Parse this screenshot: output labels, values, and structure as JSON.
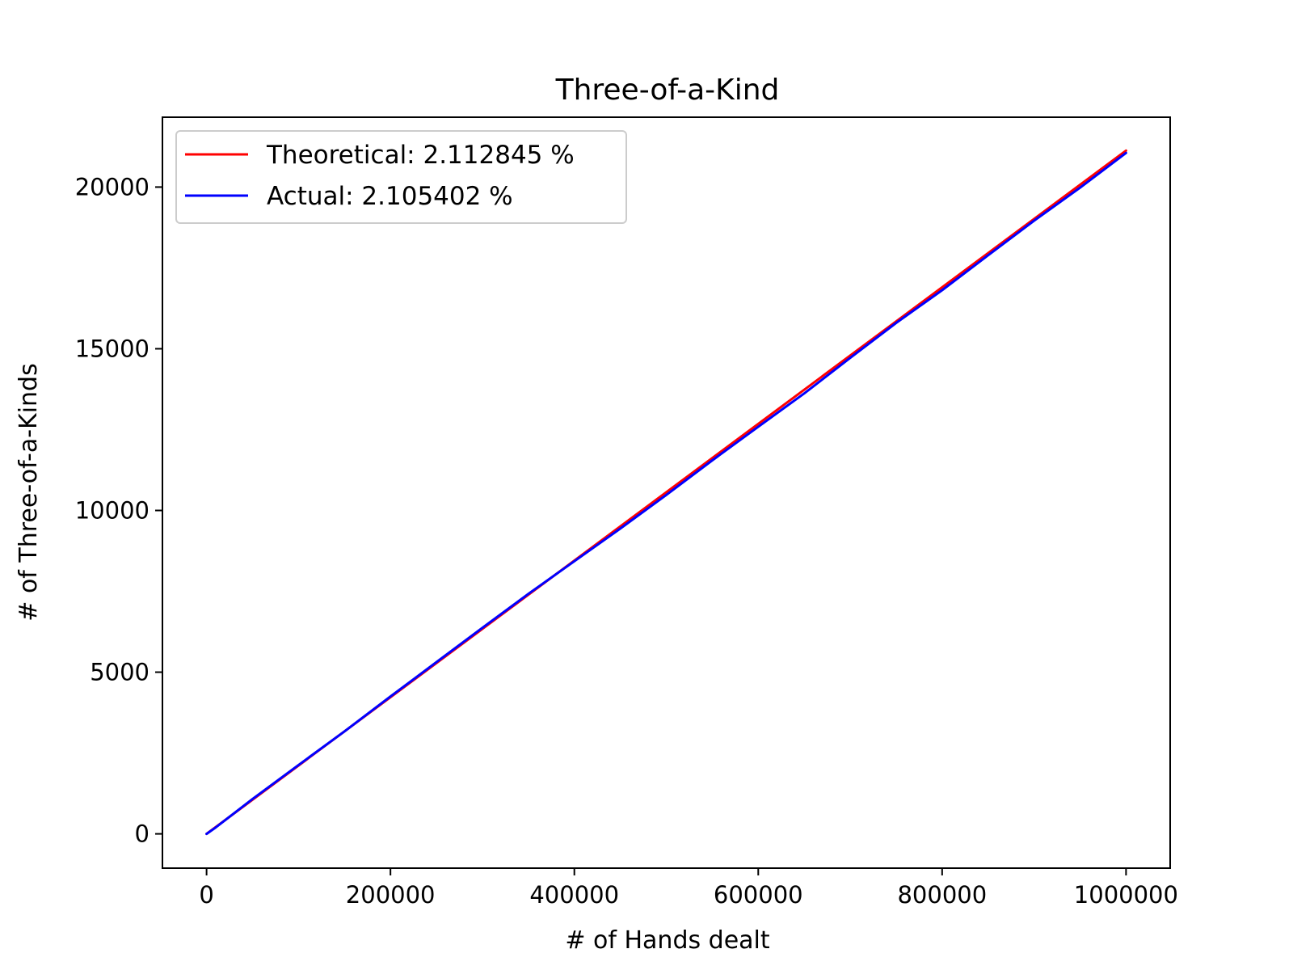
{
  "chart_data": {
    "type": "line",
    "title": "Three-of-a-Kind",
    "xlabel": "# of Hands dealt",
    "ylabel": "# of Three-of-a-Kinds",
    "xlim": [
      -48000,
      1048000
    ],
    "ylim": [
      -1060,
      22160
    ],
    "xticks": [
      0,
      200000,
      400000,
      600000,
      800000,
      1000000
    ],
    "xtick_labels": [
      "0",
      "200000",
      "400000",
      "600000",
      "800000",
      "1000000"
    ],
    "yticks": [
      0,
      5000,
      10000,
      15000,
      20000
    ],
    "ytick_labels": [
      "0",
      "5000",
      "10000",
      "15000",
      "20000"
    ],
    "grid": false,
    "legend_position": "top-left",
    "series": [
      {
        "name": "Theoretical: 2.112845 %",
        "color": "#ff0000",
        "x": [
          0,
          1000000
        ],
        "y": [
          0,
          21128
        ]
      },
      {
        "name": "Actual: 2.105402 %",
        "color": "#0000ff",
        "x": [
          0,
          10000,
          50000,
          100000,
          150000,
          200000,
          250000,
          300000,
          350000,
          400000,
          450000,
          500000,
          550000,
          600000,
          650000,
          700000,
          750000,
          800000,
          850000,
          900000,
          950000,
          1000000
        ],
        "y": [
          0,
          200,
          1080,
          2130,
          3170,
          4250,
          5310,
          6370,
          7420,
          8430,
          9440,
          10480,
          11550,
          12590,
          13620,
          14720,
          15800,
          16810,
          17890,
          18960,
          19980,
          21054
        ]
      }
    ]
  }
}
